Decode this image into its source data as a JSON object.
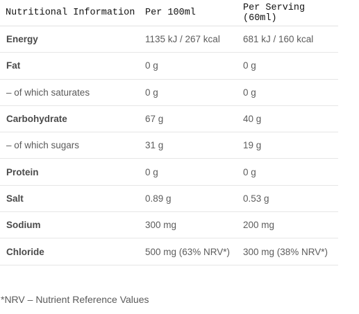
{
  "table": {
    "headers": [
      "Nutritional Information",
      "Per 100ml",
      "Per Serving (60ml)"
    ],
    "rows": [
      {
        "label": "Energy",
        "per100": "1135 kJ / 267 kcal",
        "perServing": "681 kJ / 160 kcal",
        "bold": true
      },
      {
        "label": "Fat",
        "per100": "0 g",
        "perServing": "0 g",
        "bold": true
      },
      {
        "label": "– of which saturates",
        "per100": "0 g",
        "perServing": "0 g",
        "bold": false
      },
      {
        "label": "Carbohydrate",
        "per100": "67 g",
        "perServing": "40 g",
        "bold": true
      },
      {
        "label": "– of which sugars",
        "per100": "31 g",
        "perServing": "19 g",
        "bold": false
      },
      {
        "label": "Protein",
        "per100": "0 g",
        "perServing": "0 g",
        "bold": true
      },
      {
        "label": "Salt",
        "per100": "0.89 g",
        "perServing": "0.53 g",
        "bold": true
      },
      {
        "label": "Sodium",
        "per100": "300 mg",
        "perServing": "200 mg",
        "bold": true
      },
      {
        "label": "Chloride",
        "per100": "500 mg (63% NRV*)",
        "perServing": "300 mg (38% NRV*)",
        "bold": true
      }
    ]
  },
  "footnote": "*NRV – Nutrient Reference Values"
}
